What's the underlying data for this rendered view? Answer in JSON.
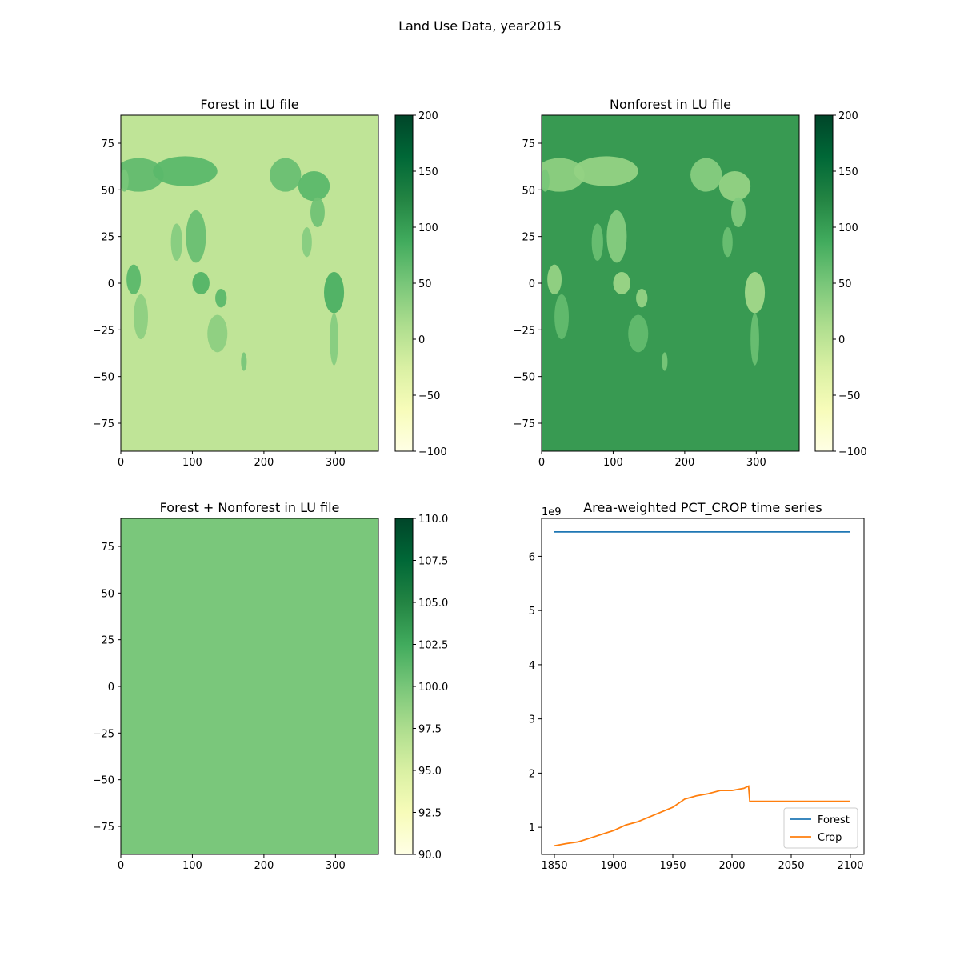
{
  "figure": {
    "suptitle": "Land Use Data, year2015"
  },
  "chart_data": [
    {
      "type": "heatmap",
      "title": "Forest in LU file",
      "colormap": "YlGn",
      "xlim": [
        0,
        360
      ],
      "ylim": [
        -90,
        90
      ],
      "xticks": [
        "0",
        "100",
        "200",
        "300"
      ],
      "yticks": [
        "75",
        "50",
        "25",
        "0",
        "−25",
        "−50",
        "−75"
      ],
      "colorbar": {
        "range": [
          -100,
          200
        ],
        "ticks": [
          "200",
          "150",
          "100",
          "50",
          "0",
          "−50",
          "−100"
        ]
      },
      "background_value": 0,
      "background_color": "#bfe497",
      "land_value_max": 100
    },
    {
      "type": "heatmap",
      "title": "Nonforest in LU file",
      "colormap": "YlGn",
      "xlim": [
        0,
        360
      ],
      "ylim": [
        -90,
        90
      ],
      "xticks": [
        "0",
        "100",
        "200",
        "300"
      ],
      "yticks": [
        "75",
        "50",
        "25",
        "0",
        "−25",
        "−50",
        "−75"
      ],
      "colorbar": {
        "range": [
          -100,
          200
        ],
        "ticks": [
          "200",
          "150",
          "100",
          "50",
          "0",
          "−50",
          "−100"
        ]
      },
      "background_value": 100,
      "background_color": "#389a52"
    },
    {
      "type": "heatmap",
      "title": "Forest + Nonforest in LU file",
      "colormap": "YlGn",
      "xlim": [
        0,
        360
      ],
      "ylim": [
        -90,
        90
      ],
      "xticks": [
        "0",
        "100",
        "200",
        "300"
      ],
      "yticks": [
        "75",
        "50",
        "25",
        "0",
        "−25",
        "−50",
        "−75"
      ],
      "colorbar": {
        "range": [
          90,
          110
        ],
        "ticks": [
          "110.0",
          "107.5",
          "105.0",
          "102.5",
          "100.0",
          "97.5",
          "95.0",
          "92.5",
          "90.0"
        ]
      },
      "uniform_value": 100,
      "fill_color": "#7ac77b"
    },
    {
      "type": "line",
      "title": "Area-weighted PCT_CROP time series",
      "xlim": [
        1850,
        2100
      ],
      "ylim": [
        0.5,
        6.7
      ],
      "yscale_label": "1e9",
      "xticks": [
        "1850",
        "1900",
        "1950",
        "2000",
        "2050",
        "2100"
      ],
      "yticks": [
        "1",
        "2",
        "3",
        "4",
        "5",
        "6"
      ],
      "legend": "lower right",
      "series": [
        {
          "name": "Forest",
          "color": "#1f77b4",
          "x": [
            1850,
            2100
          ],
          "y": [
            6.45,
            6.45
          ]
        },
        {
          "name": "Crop",
          "color": "#ff7f0e",
          "x": [
            1850,
            1860,
            1870,
            1880,
            1890,
            1900,
            1910,
            1920,
            1930,
            1940,
            1950,
            1960,
            1970,
            1980,
            1990,
            2000,
            2005,
            2010,
            2014,
            2015,
            2020,
            2050,
            2100
          ],
          "y": [
            0.66,
            0.7,
            0.73,
            0.8,
            0.87,
            0.94,
            1.04,
            1.1,
            1.19,
            1.28,
            1.37,
            1.52,
            1.58,
            1.62,
            1.68,
            1.68,
            1.7,
            1.72,
            1.76,
            1.48,
            1.48,
            1.48,
            1.48
          ]
        }
      ]
    }
  ]
}
